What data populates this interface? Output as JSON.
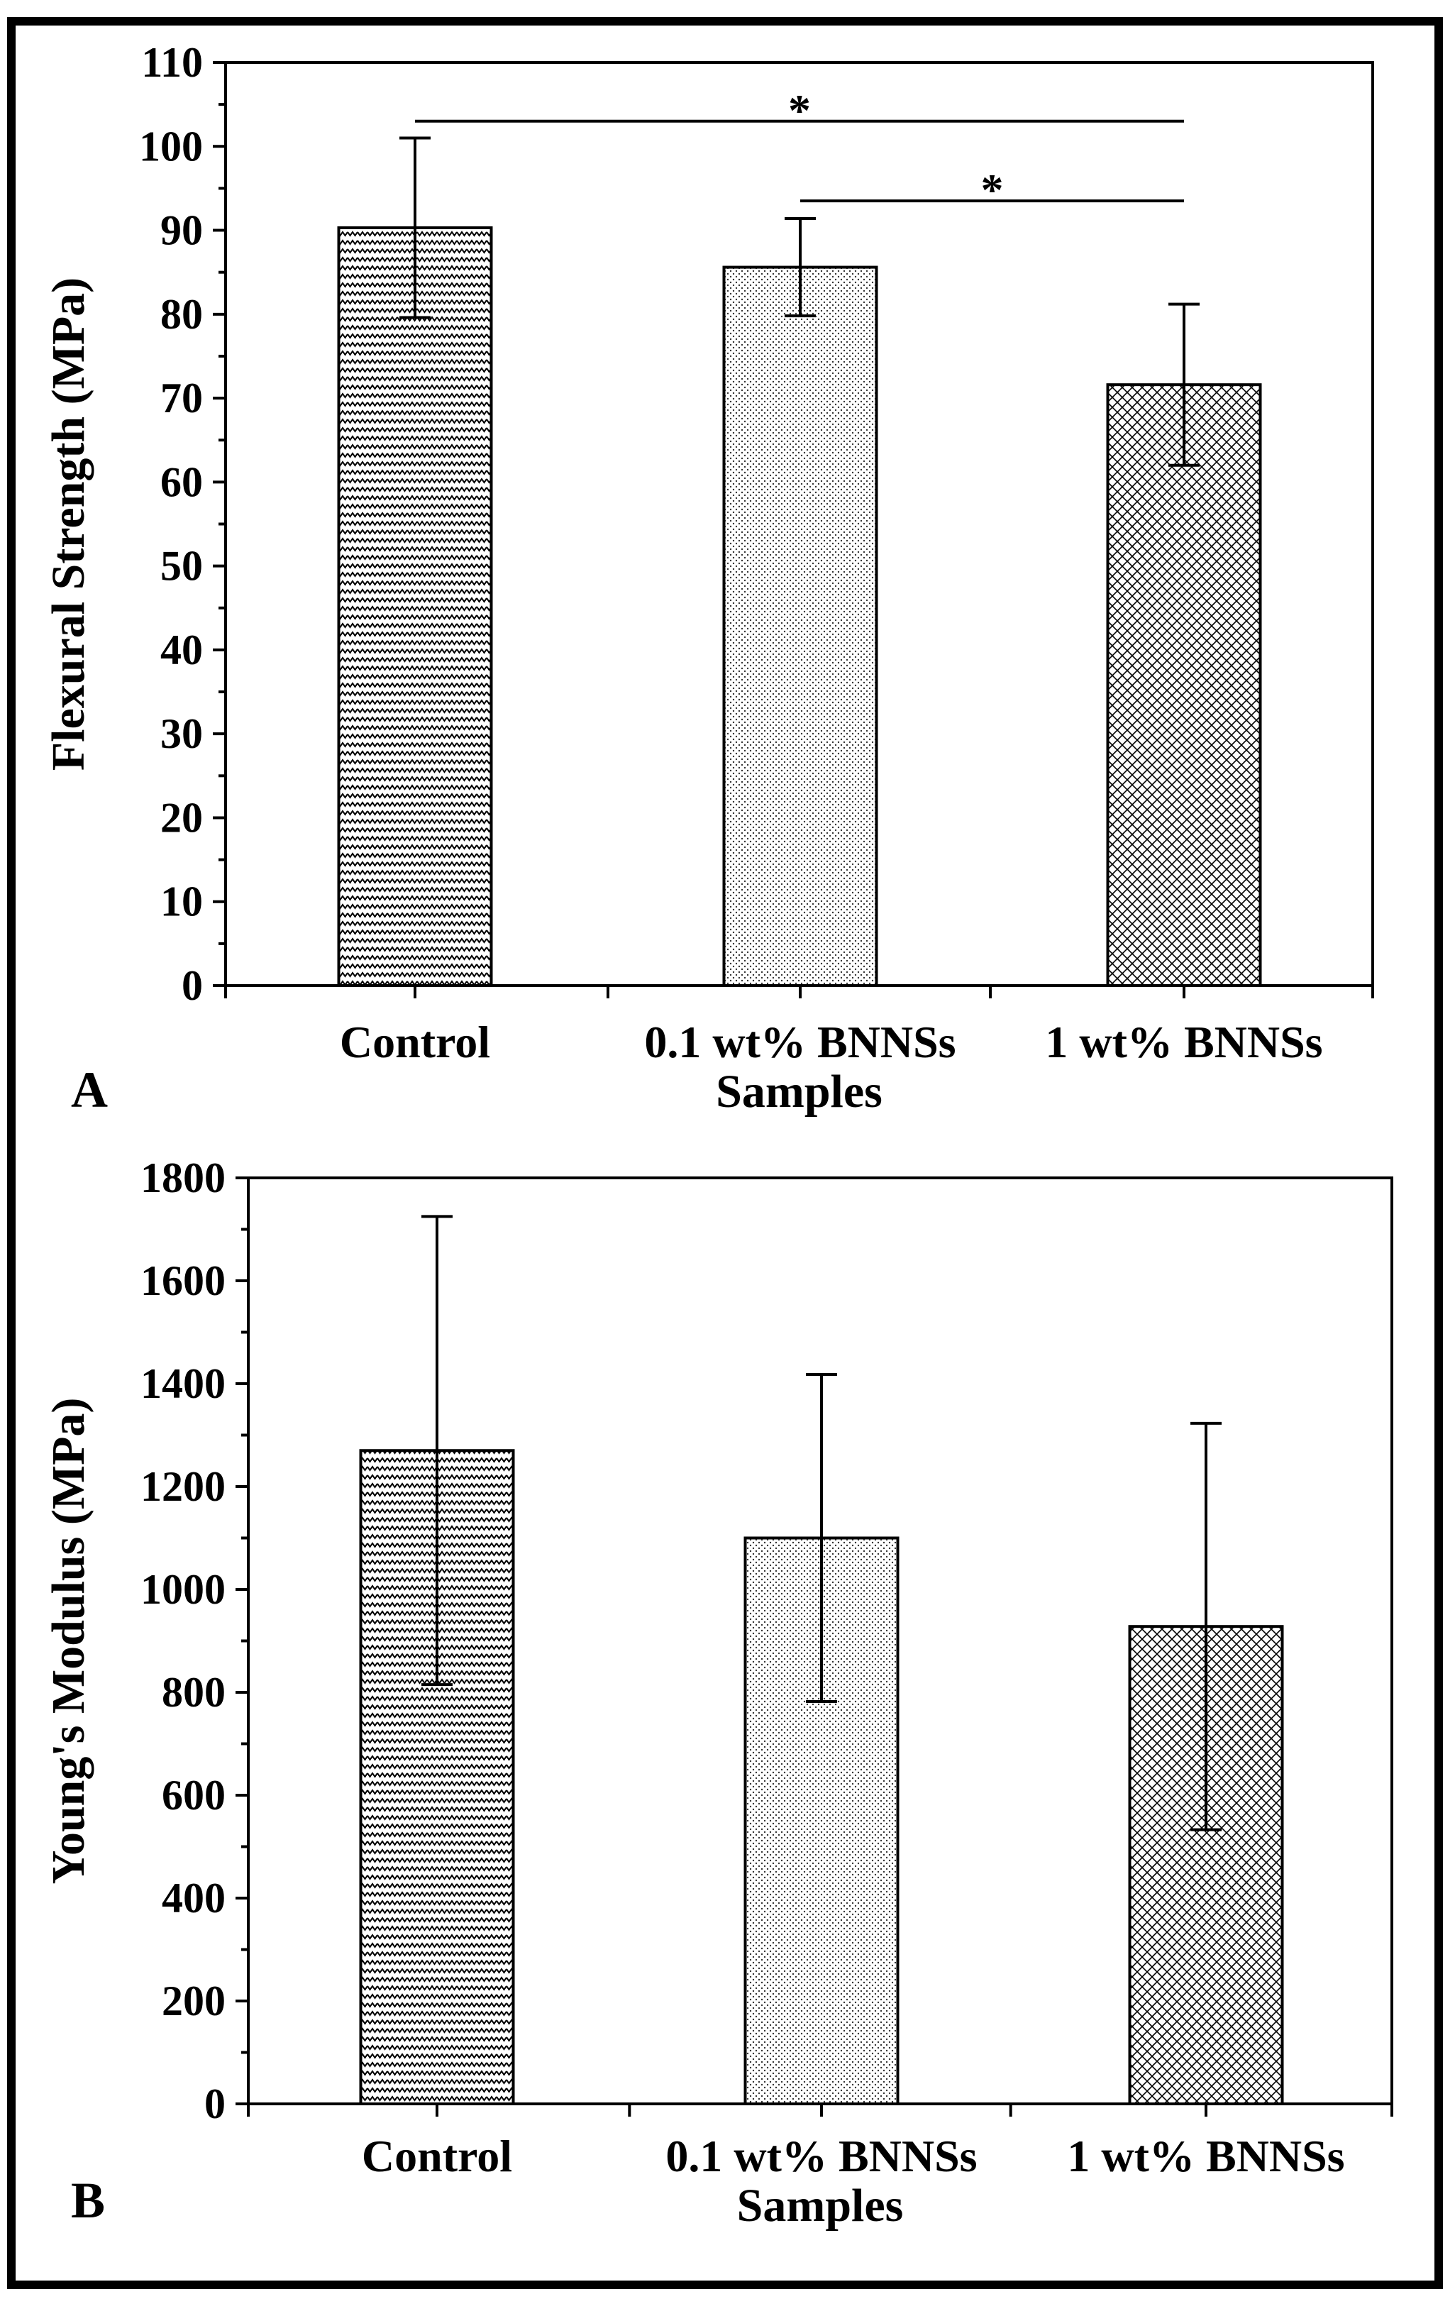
{
  "chart_data": [
    {
      "panel": "A",
      "type": "bar",
      "xlabel": "Samples",
      "ylabel": "Flexural Strength (MPa)",
      "ylim": [
        0,
        110
      ],
      "yticks": [
        "0",
        "10",
        "20",
        "30",
        "40",
        "50",
        "60",
        "70",
        "80",
        "90",
        "100",
        "110"
      ],
      "categories": [
        "Control",
        "0.1 wt% BNNSs",
        "1 wt% BNNSs"
      ],
      "values": [
        90.3,
        85.6,
        71.6
      ],
      "errors": [
        10.7,
        5.8,
        9.6
      ],
      "patterns": [
        "zigzag",
        "dots",
        "crosshatch"
      ],
      "significance": [
        {
          "from": 0,
          "to": 2,
          "y": 103,
          "label": "*"
        },
        {
          "from": 1,
          "to": 2,
          "y": 93.5,
          "label": "*"
        }
      ]
    },
    {
      "panel": "B",
      "type": "bar",
      "xlabel": "Samples",
      "ylabel": "Young's Modulus (MPa)",
      "ylim": [
        0,
        1800
      ],
      "yticks": [
        "0",
        "200",
        "400",
        "600",
        "800",
        "1000",
        "1200",
        "1400",
        "1600",
        "1800"
      ],
      "categories": [
        "Control",
        "0.1 wt% BNNSs",
        "1 wt% BNNSs"
      ],
      "values": [
        1270,
        1100,
        928
      ],
      "errors": [
        455,
        318,
        395
      ],
      "patterns": [
        "zigzag",
        "dots",
        "crosshatch"
      ],
      "significance": []
    }
  ]
}
